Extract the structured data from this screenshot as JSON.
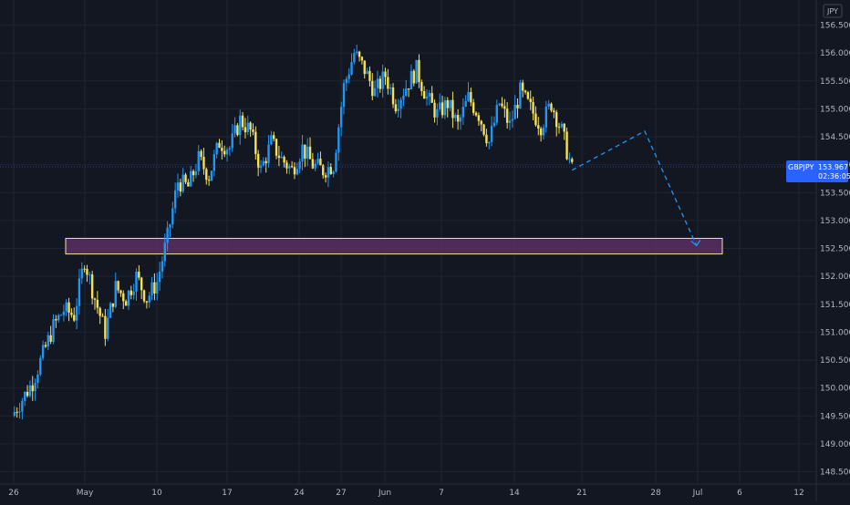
{
  "currency_label": "JPY",
  "symbol": "GBPJPY",
  "last_price": "153.967",
  "countdown": "02:36:05",
  "colors": {
    "background": "#131722",
    "candle_up": "#2196f3",
    "candle_down": "#f5e05a",
    "grid": "#1f2433",
    "tag": "#2962ff",
    "zone_fill": "#5b2f63",
    "zone_border": "#f0e6a0",
    "projection": "#2196f3"
  },
  "chart_data": {
    "type": "candlestick",
    "ylim": [
      148.5,
      156.6
    ],
    "y_ticks": [
      "156.500",
      "156.000",
      "155.500",
      "155.000",
      "154.500",
      "154.000",
      "153.500",
      "153.000",
      "152.500",
      "152.000",
      "151.500",
      "151.000",
      "150.500",
      "150.000",
      "149.500",
      "149.000",
      "148.500"
    ],
    "x_ticks": [
      "26",
      "May",
      "10",
      "17",
      "24",
      "27",
      "Jun",
      "7",
      "14",
      "21",
      "28",
      "Jul",
      "6",
      "12"
    ],
    "close_path": [
      [
        "Apr 26",
        149.5
      ],
      [
        "Apr 27",
        149.8
      ],
      [
        "Apr 28",
        150.1
      ],
      [
        "Apr 29",
        150.6
      ],
      [
        "Apr 30",
        151.1
      ],
      [
        "May 1",
        151.4
      ],
      [
        "May 2",
        151.3
      ],
      [
        "May 3",
        152.3
      ],
      [
        "May 4",
        151.6
      ],
      [
        "May 5",
        151.0
      ],
      [
        "May 6",
        151.8
      ],
      [
        "May 7",
        151.6
      ],
      [
        "May 8",
        152.0
      ],
      [
        "May 9",
        151.6
      ],
      [
        "May 10",
        151.9
      ],
      [
        "May 11",
        152.7
      ],
      [
        "May 12",
        153.7
      ],
      [
        "May 13",
        153.6
      ],
      [
        "May 14",
        154.1
      ],
      [
        "May 15",
        153.8
      ],
      [
        "May 16",
        154.4
      ],
      [
        "May 17",
        154.3
      ],
      [
        "May 18",
        154.8
      ],
      [
        "May 19",
        154.6
      ],
      [
        "May 20",
        153.9
      ],
      [
        "May 21",
        154.4
      ],
      [
        "May 22",
        154.1
      ],
      [
        "May 23",
        153.9
      ],
      [
        "May 24",
        154.3
      ],
      [
        "May 25",
        154.0
      ],
      [
        "May 26",
        153.9
      ],
      [
        "May 27",
        154.0
      ],
      [
        "May 28",
        155.4
      ],
      [
        "May 29",
        156.0
      ],
      [
        "May 30",
        155.7
      ],
      [
        "May 31",
        155.3
      ],
      [
        "Jun 1",
        155.6
      ],
      [
        "Jun 2",
        155.1
      ],
      [
        "Jun 3",
        155.4
      ],
      [
        "Jun 4",
        155.7
      ],
      [
        "Jun 5",
        155.2
      ],
      [
        "Jun 6",
        154.9
      ],
      [
        "Jun 7",
        155.1
      ],
      [
        "Jun 8",
        154.7
      ],
      [
        "Jun 9",
        155.2
      ],
      [
        "Jun 10",
        154.9
      ],
      [
        "Jun 11",
        154.4
      ],
      [
        "Jun 12",
        155.1
      ],
      [
        "Jun 13",
        154.7
      ],
      [
        "Jun 14",
        155.3
      ],
      [
        "Jun 15",
        155.0
      ],
      [
        "Jun 16",
        154.7
      ],
      [
        "Jun 17",
        155.1
      ],
      [
        "Jun 18",
        154.6
      ],
      [
        "Jun 19",
        153.9
      ]
    ],
    "zone": {
      "low": 152.45,
      "high": 152.58,
      "from": "Apr 30",
      "to": "Jul 5"
    },
    "projection": [
      {
        "date": "Jun 19",
        "price": 153.9
      },
      {
        "date": "Jun 26",
        "price": 154.6
      },
      {
        "date": "Jul 1",
        "price": 152.55
      }
    ]
  }
}
